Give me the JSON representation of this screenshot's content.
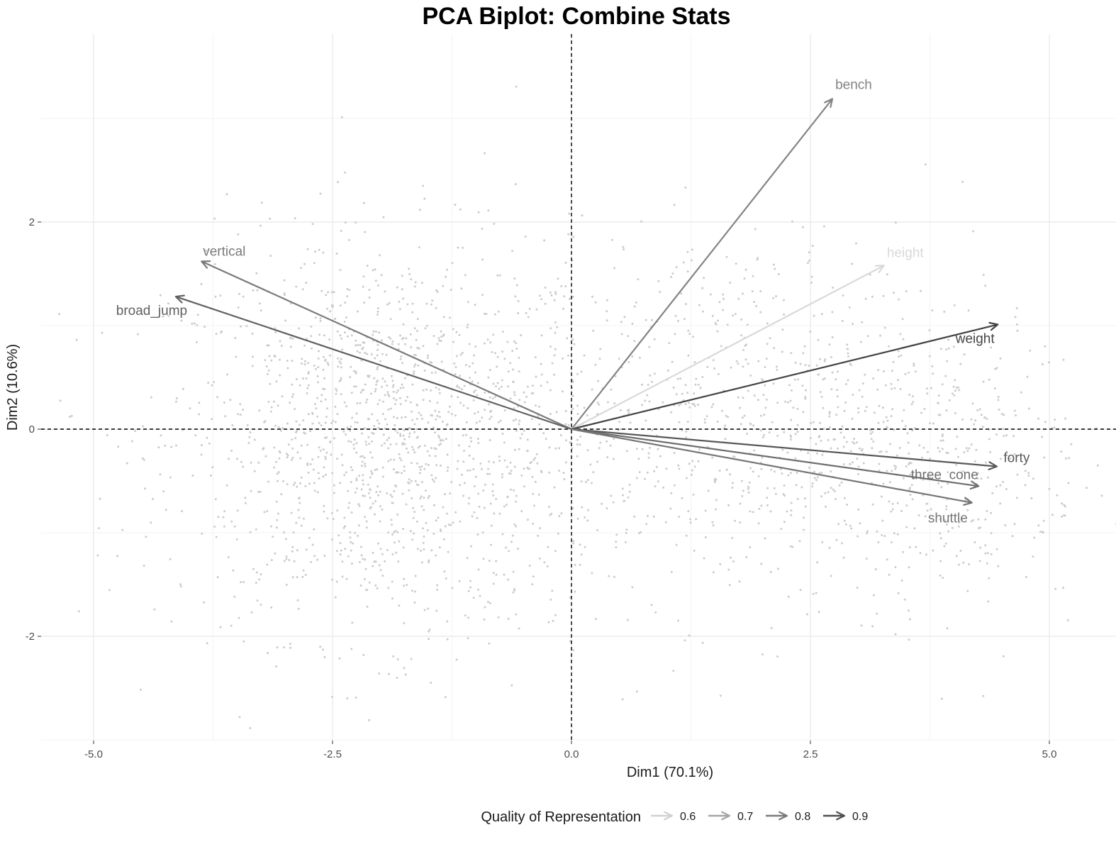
{
  "chart_data": {
    "type": "scatter",
    "subtype": "pca-biplot",
    "title": "PCA Biplot: Combine Stats",
    "xlabel": "Dim1 (70.1%)",
    "ylabel": "Dim2 (10.6%)",
    "xlim": [
      -5.5,
      5.5
    ],
    "ylim": [
      -3.0,
      4.0
    ],
    "x_ticks": [
      -5.0,
      -2.5,
      0.0,
      2.5,
      5.0
    ],
    "x_tick_labels": [
      "-5.0",
      "-2.5",
      "0.0",
      "2.5",
      "5.0"
    ],
    "y_ticks": [
      -2,
      0,
      2
    ],
    "y_tick_labels": [
      "-2",
      "0",
      "2"
    ],
    "grid": true,
    "reference_lines": {
      "x": 0,
      "y": 0,
      "style": "dashed"
    },
    "individuals_color": "#cccccc",
    "variables": [
      {
        "name": "bench",
        "x": 2.73,
        "y": 3.19,
        "quality": 0.78
      },
      {
        "name": "height",
        "x": 3.27,
        "y": 1.58,
        "quality": 0.58
      },
      {
        "name": "weight",
        "x": 4.46,
        "y": 1.01,
        "quality": 0.93
      },
      {
        "name": "forty",
        "x": 4.45,
        "y": -0.36,
        "quality": 0.88
      },
      {
        "name": "three_cone",
        "x": 4.26,
        "y": -0.55,
        "quality": 0.83
      },
      {
        "name": "shuttle",
        "x": 4.19,
        "y": -0.71,
        "quality": 0.81
      },
      {
        "name": "vertical",
        "x": -3.87,
        "y": 1.62,
        "quality": 0.8
      },
      {
        "name": "broad_jump",
        "x": -4.14,
        "y": 1.28,
        "quality": 0.86
      }
    ],
    "legend": {
      "title": "Quality of Representation",
      "position": "bottom",
      "entries": [
        {
          "label": "0.6",
          "value": 0.6
        },
        {
          "label": "0.7",
          "value": 0.7
        },
        {
          "label": "0.8",
          "value": 0.8
        },
        {
          "label": "0.9",
          "value": 0.9
        }
      ],
      "colors": {
        "low": "#e6e6e6",
        "high": "#3a3a3a"
      }
    }
  }
}
